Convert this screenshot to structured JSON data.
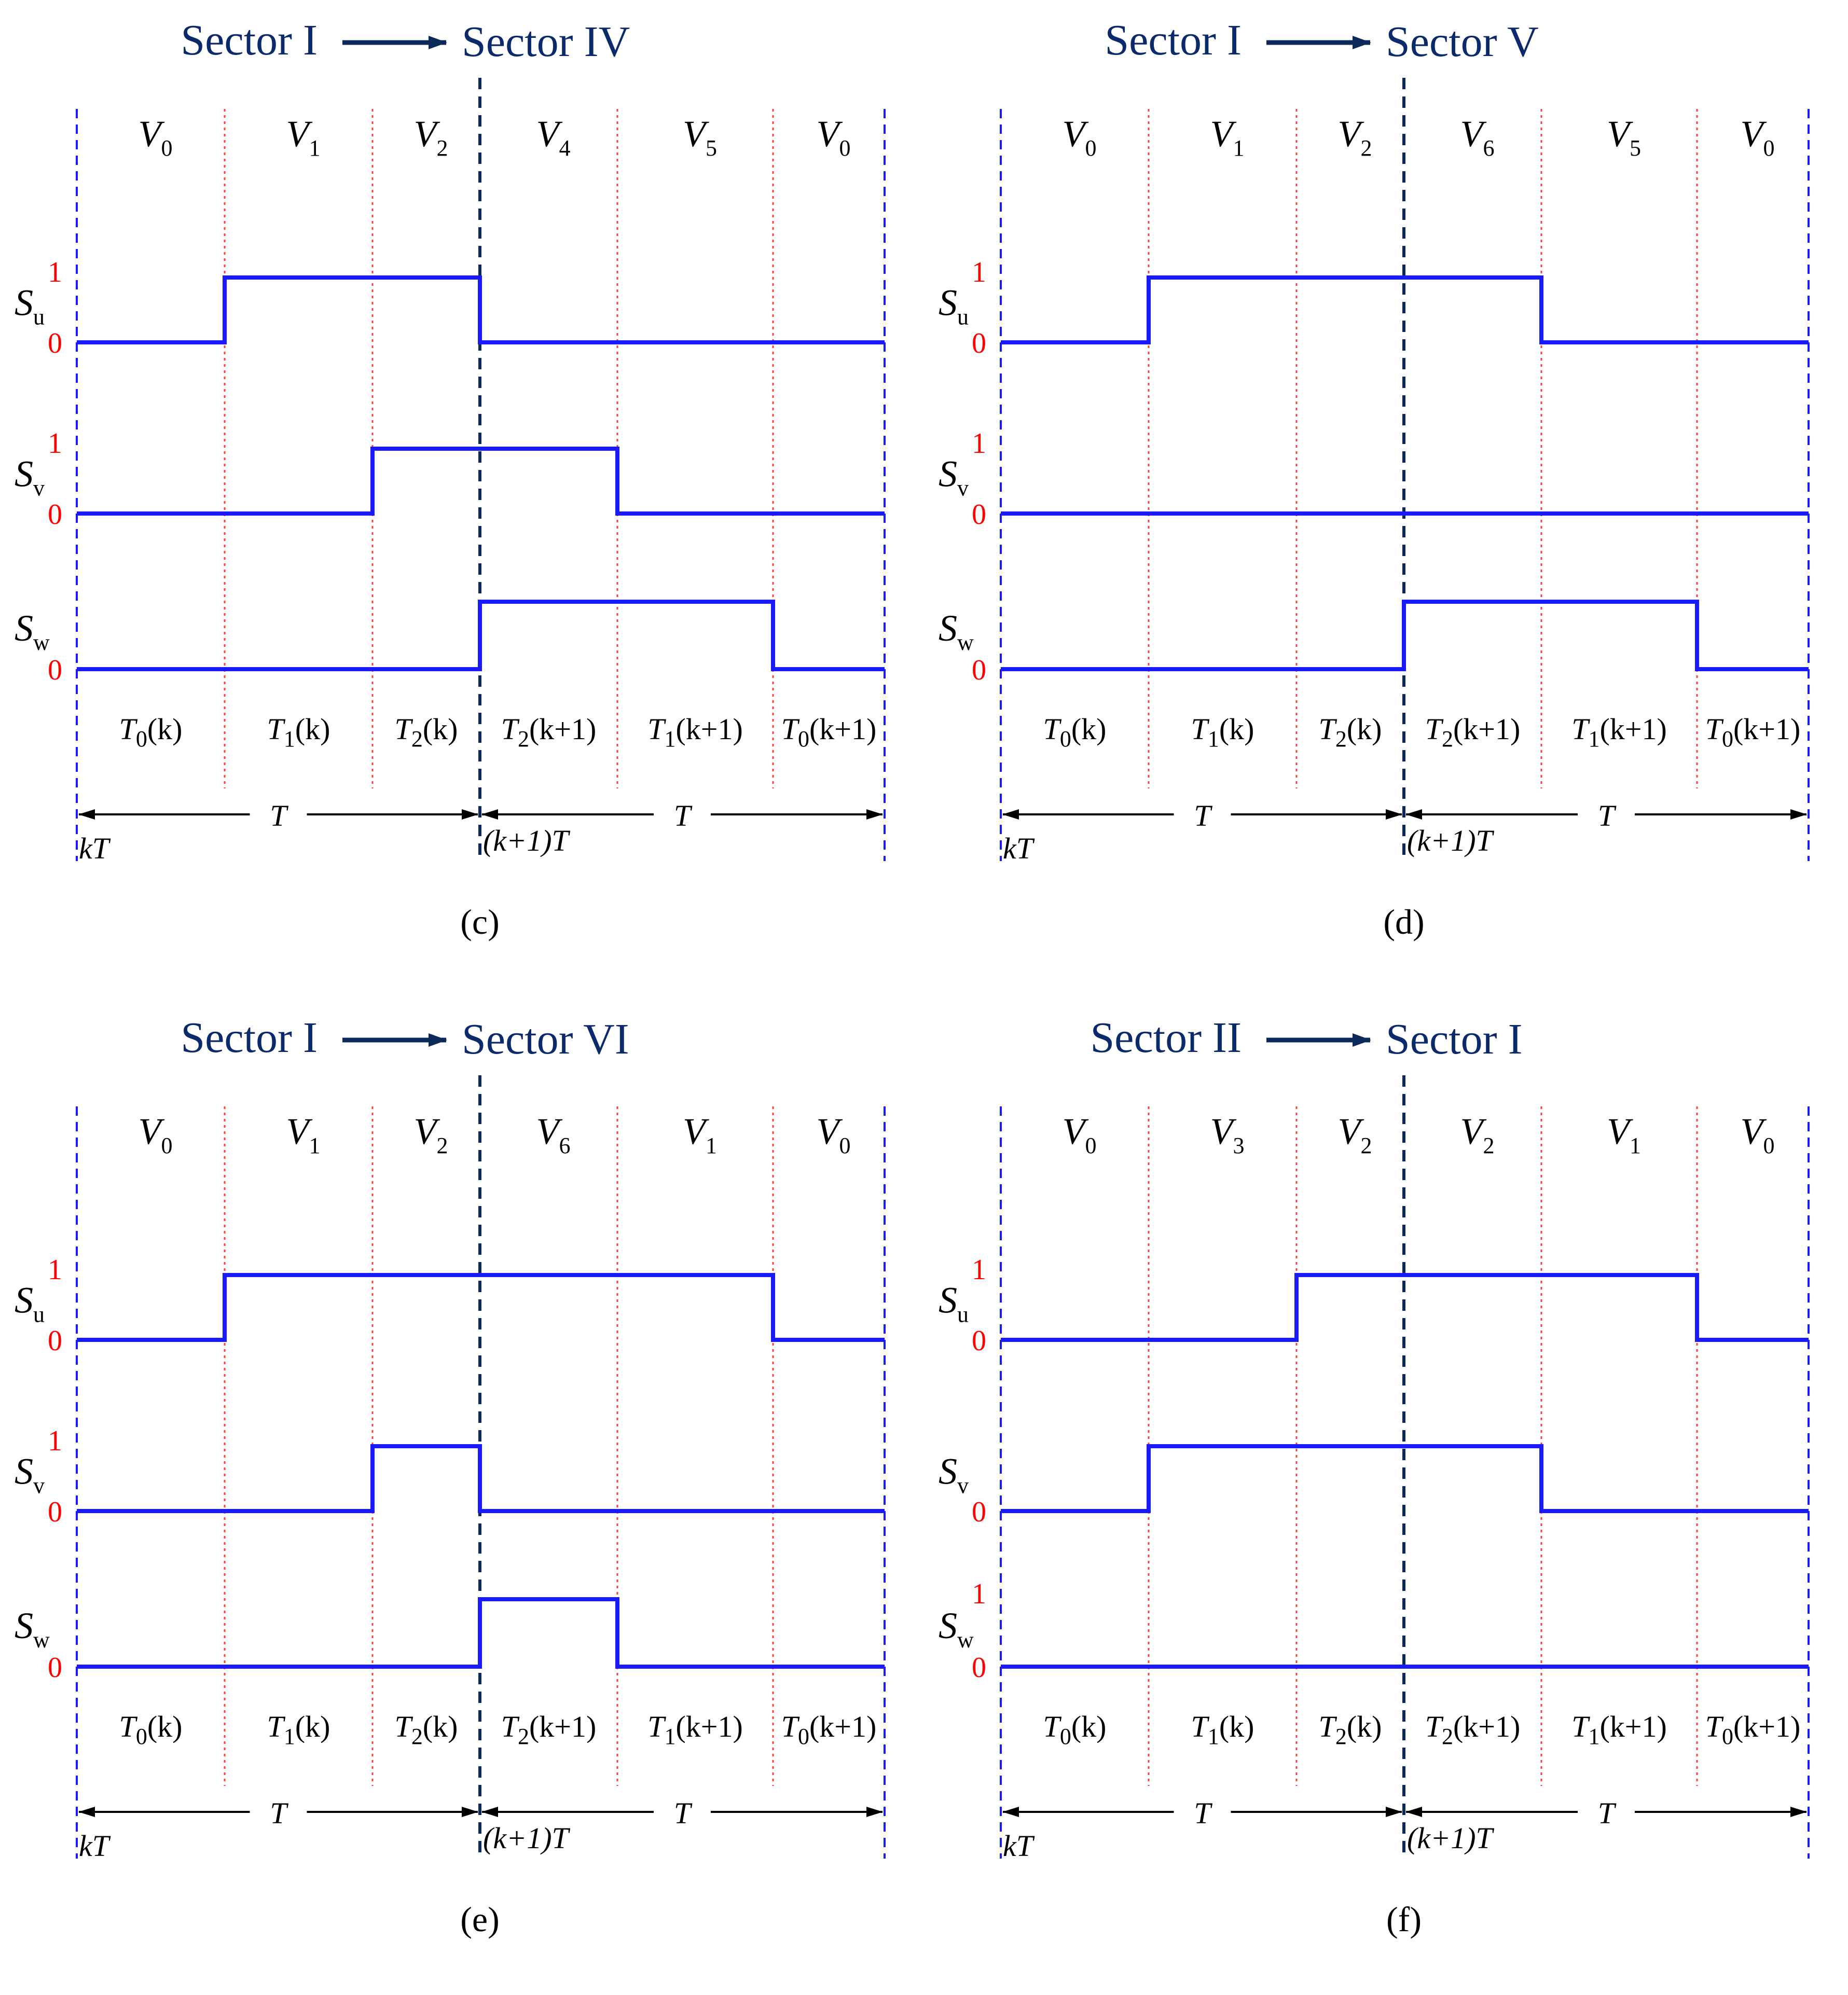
{
  "colors": {
    "waveform": "#1a1aff",
    "header_text": "#0b2a6b",
    "level_text": "#ff0000",
    "boundary_dashed": "#1a1aff",
    "period_divider": "#0b2a5a",
    "slot_divider": "#ff3b3b",
    "text": "#000000"
  },
  "panels": [
    {
      "caption": "(c)",
      "header": {
        "from": "Sector I",
        "to": "Sector IV"
      },
      "vectors": [
        {
          "main": "V",
          "sub": "0"
        },
        {
          "main": "V",
          "sub": "1"
        },
        {
          "main": "V",
          "sub": "2"
        },
        {
          "main": "V",
          "sub": "4"
        },
        {
          "main": "V",
          "sub": "5"
        },
        {
          "main": "V",
          "sub": "0"
        }
      ],
      "signals": [
        {
          "name": "S",
          "sub": "u",
          "high_label": "1",
          "low_label": "0",
          "states": [
            0,
            1,
            1,
            0,
            0,
            0
          ]
        },
        {
          "name": "S",
          "sub": "v",
          "high_label": "1",
          "low_label": "0",
          "states": [
            0,
            0,
            1,
            1,
            0,
            0
          ]
        },
        {
          "name": "S",
          "sub": "w",
          "high_label": "",
          "low_label": "0",
          "states": [
            0,
            0,
            0,
            1,
            1,
            0
          ]
        }
      ],
      "durations": [
        {
          "t": "T",
          "i": "0",
          "arg": "(k)"
        },
        {
          "t": "T",
          "i": "1",
          "arg": "(k)"
        },
        {
          "t": "T",
          "i": "2",
          "arg": "(k)"
        },
        {
          "t": "T",
          "i": "2",
          "arg": "(k+1)"
        },
        {
          "t": "T",
          "i": "1",
          "arg": "(k+1)"
        },
        {
          "t": "T",
          "i": "0",
          "arg": "(k+1)"
        }
      ],
      "period_label": "T",
      "start_time": "kT",
      "mid_time": "(k+1)T"
    },
    {
      "caption": "(d)",
      "header": {
        "from": "Sector I",
        "to": "Sector V"
      },
      "vectors": [
        {
          "main": "V",
          "sub": "0"
        },
        {
          "main": "V",
          "sub": "1"
        },
        {
          "main": "V",
          "sub": "2"
        },
        {
          "main": "V",
          "sub": "6"
        },
        {
          "main": "V",
          "sub": "5"
        },
        {
          "main": "V",
          "sub": "0"
        }
      ],
      "signals": [
        {
          "name": "S",
          "sub": "u",
          "high_label": "1",
          "low_label": "0",
          "states": [
            0,
            1,
            1,
            1,
            0,
            0
          ]
        },
        {
          "name": "S",
          "sub": "v",
          "high_label": "1",
          "low_label": "0",
          "states": [
            0,
            0,
            0,
            0,
            0,
            0
          ]
        },
        {
          "name": "S",
          "sub": "w",
          "high_label": "",
          "low_label": "0",
          "states": [
            0,
            0,
            0,
            1,
            1,
            0
          ]
        }
      ],
      "durations": [
        {
          "t": "T",
          "i": "0",
          "arg": "(k)"
        },
        {
          "t": "T",
          "i": "1",
          "arg": "(k)"
        },
        {
          "t": "T",
          "i": "2",
          "arg": "(k)"
        },
        {
          "t": "T",
          "i": "2",
          "arg": "(k+1)"
        },
        {
          "t": "T",
          "i": "1",
          "arg": "(k+1)"
        },
        {
          "t": "T",
          "i": "0",
          "arg": "(k+1)"
        }
      ],
      "period_label": "T",
      "start_time": "kT",
      "mid_time": "(k+1)T"
    },
    {
      "caption": "(e)",
      "header": {
        "from": "Sector I",
        "to": "Sector VI"
      },
      "vectors": [
        {
          "main": "V",
          "sub": "0"
        },
        {
          "main": "V",
          "sub": "1"
        },
        {
          "main": "V",
          "sub": "2"
        },
        {
          "main": "V",
          "sub": "6"
        },
        {
          "main": "V",
          "sub": "1"
        },
        {
          "main": "V",
          "sub": "0"
        }
      ],
      "signals": [
        {
          "name": "S",
          "sub": "u",
          "high_label": "1",
          "low_label": "0",
          "states": [
            0,
            1,
            1,
            1,
            1,
            0
          ]
        },
        {
          "name": "S",
          "sub": "v",
          "high_label": "1",
          "low_label": "0",
          "states": [
            0,
            0,
            1,
            0,
            0,
            0
          ]
        },
        {
          "name": "S",
          "sub": "w",
          "high_label": "",
          "low_label": "0",
          "states": [
            0,
            0,
            0,
            1,
            0,
            0
          ]
        }
      ],
      "durations": [
        {
          "t": "T",
          "i": "0",
          "arg": "(k)"
        },
        {
          "t": "T",
          "i": "1",
          "arg": "(k)"
        },
        {
          "t": "T",
          "i": "2",
          "arg": "(k)"
        },
        {
          "t": "T",
          "i": "2",
          "arg": "(k+1)"
        },
        {
          "t": "T",
          "i": "1",
          "arg": "(k+1)"
        },
        {
          "t": "T",
          "i": "0",
          "arg": "(k+1)"
        }
      ],
      "period_label": "T",
      "start_time": "kT",
      "mid_time": "(k+1)T"
    },
    {
      "caption": "(f)",
      "header": {
        "from": "Sector II",
        "to": "Sector I"
      },
      "vectors": [
        {
          "main": "V",
          "sub": "0"
        },
        {
          "main": "V",
          "sub": "3"
        },
        {
          "main": "V",
          "sub": "2"
        },
        {
          "main": "V",
          "sub": "2"
        },
        {
          "main": "V",
          "sub": "1"
        },
        {
          "main": "V",
          "sub": "0"
        }
      ],
      "signals": [
        {
          "name": "S",
          "sub": "u",
          "high_label": "1",
          "low_label": "0",
          "states": [
            0,
            0,
            1,
            1,
            1,
            0
          ]
        },
        {
          "name": "S",
          "sub": "v",
          "high_label": "",
          "low_label": "0",
          "states": [
            0,
            1,
            1,
            1,
            0,
            0
          ]
        },
        {
          "name": "S",
          "sub": "w",
          "high_label": "1",
          "low_label": "0",
          "states": [
            0,
            0,
            0,
            0,
            0,
            0
          ]
        }
      ],
      "durations": [
        {
          "t": "T",
          "i": "0",
          "arg": "(k)"
        },
        {
          "t": "T",
          "i": "1",
          "arg": "(k)"
        },
        {
          "t": "T",
          "i": "2",
          "arg": "(k)"
        },
        {
          "t": "T",
          "i": "2",
          "arg": "(k+1)"
        },
        {
          "t": "T",
          "i": "1",
          "arg": "(k+1)"
        },
        {
          "t": "T",
          "i": "0",
          "arg": "(k+1)"
        }
      ],
      "period_label": "T",
      "start_time": "kT",
      "mid_time": "(k+1)T"
    }
  ]
}
